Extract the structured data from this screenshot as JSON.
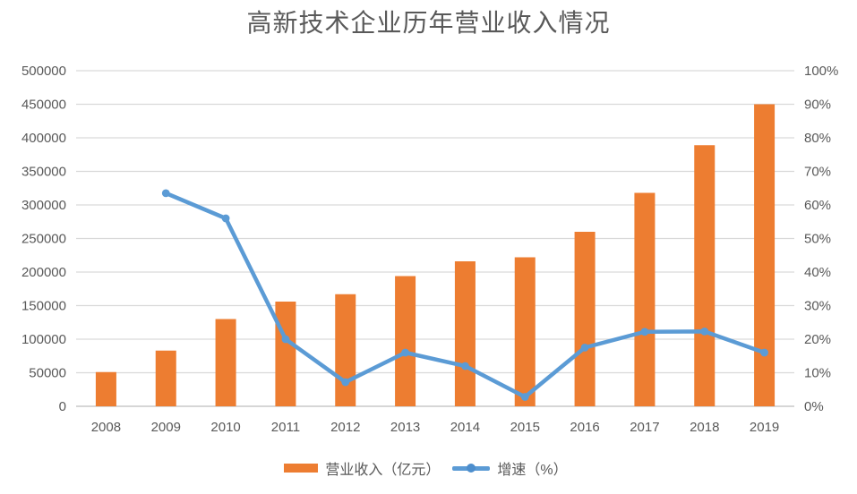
{
  "colors": {
    "text": "#595959",
    "grid": "#D9D9D9",
    "axis_line": "#C9C9C9",
    "bar": "#ED7D31",
    "line": "#5B9BD5",
    "line_marker": "#4D8ECD"
  },
  "chart_data": {
    "type": "bar",
    "combo": "bar+line, dual axis",
    "title": "高新技术企业历年营业收入情况",
    "categories": [
      "2008",
      "2009",
      "2010",
      "2011",
      "2012",
      "2013",
      "2014",
      "2015",
      "2016",
      "2017",
      "2018",
      "2019"
    ],
    "series": [
      {
        "name": "营业收入（亿元）",
        "type": "bar",
        "axis": "left",
        "color": "#ED7D31",
        "values": [
          51000,
          83000,
          130000,
          156000,
          167000,
          194000,
          216000,
          222000,
          260000,
          318000,
          389000,
          450000
        ]
      },
      {
        "name": "增速（%）",
        "type": "line",
        "axis": "right",
        "color": "#5B9BD5",
        "values": [
          null,
          63.5,
          56,
          20,
          7.2,
          16,
          12,
          2.8,
          17.5,
          22.2,
          22.3,
          16
        ]
      }
    ],
    "left_axis": {
      "min": 0,
      "max": 500000,
      "step": 50000,
      "ticks": [
        "0",
        "50000",
        "100000",
        "150000",
        "200000",
        "250000",
        "300000",
        "350000",
        "400000",
        "450000",
        "500000"
      ]
    },
    "right_axis": {
      "min": 0,
      "max": 100,
      "step": 10,
      "ticks": [
        "0%",
        "10%",
        "20%",
        "30%",
        "40%",
        "50%",
        "60%",
        "70%",
        "80%",
        "90%",
        "100%"
      ]
    },
    "grid": true,
    "legend_position": "bottom"
  }
}
